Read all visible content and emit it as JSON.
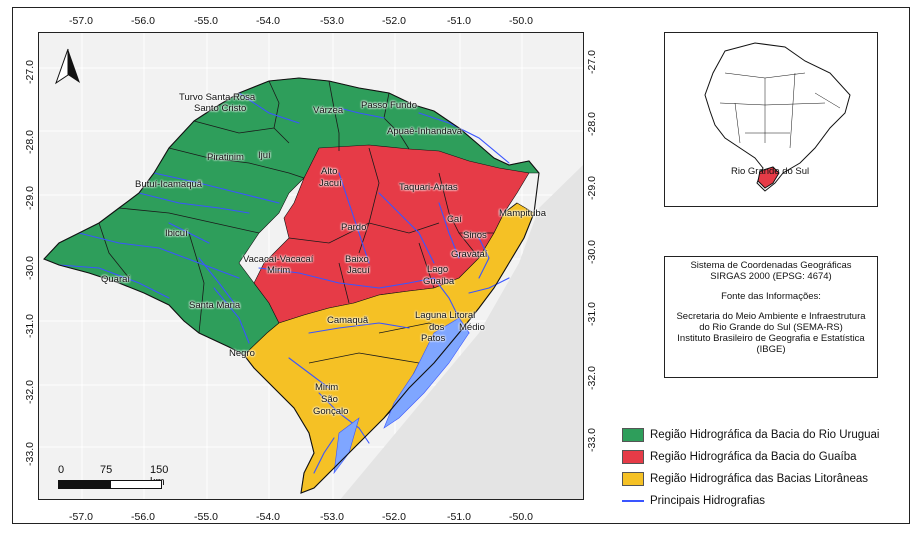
{
  "colors": {
    "uruguai": "#2e9e5b",
    "guaiba": "#e63b47",
    "litoraneas": "#f5c125",
    "hidrografia": "#3a55ff",
    "background": "#f2f2f2"
  },
  "axes": {
    "longitudes": [
      "-57.0",
      "-56.0",
      "-55.0",
      "-54.0",
      "-53.0",
      "-52.0",
      "-51.0",
      "-50.0"
    ],
    "latitudes": [
      "-27.0",
      "-28.0",
      "-29.0",
      "-30.0",
      "-31.0",
      "-32.0",
      "-33.0"
    ]
  },
  "basin_labels": [
    "Turvo Santa Rosa",
    "Santo Cristo",
    "Várzea",
    "Passo Fundo",
    "Apuaê-Inhandava",
    "Piratinim",
    "Ijuí",
    "Butuí-Icamaquã",
    "Ibicuí",
    "Quaraí",
    "Santa Maria",
    "Negro",
    "Alto",
    "Jacuí",
    "Taquari-Antas",
    "Pardo",
    "Caí",
    "Sinos",
    "Mampituba",
    "Gravataí",
    "Vacacaí-Vacacaí",
    "Mirim",
    "Baixo",
    "Jacuí",
    "Lago",
    "Guaíba",
    "Camaquã",
    "Laguna Litoral",
    "dos",
    "Médio",
    "Patos",
    "Mirim",
    "São",
    "Gonçalo"
  ],
  "locator": {
    "label": "Rio Grande do Sul"
  },
  "info": {
    "line1": "Sistema de Coordenadas Geográficas",
    "line2": "SIRGAS 2000 (EPSG: 4674)",
    "line3": "Fonte das Informações:",
    "line4": "Secretaria do Meio Ambiente e Infraestrutura",
    "line5": "do Rio Grande do Sul (SEMA-RS)",
    "line6": "Instituto Brasileiro de Geografia e Estatística",
    "line7": "(IBGE)"
  },
  "legend": {
    "uruguai": "Região Hidrográfica da Bacia do Rio Uruguai",
    "guaiba": "Região Hidrográfica da Bacia do Guaíba",
    "litoraneas": "Região Hidrográfica das Bacias Litorâneas",
    "hidrografia": "Principais Hidrografias"
  },
  "scale": {
    "t0": "0",
    "t1": "75",
    "t2": "150 km"
  },
  "north_arrow": "north-arrow-icon"
}
